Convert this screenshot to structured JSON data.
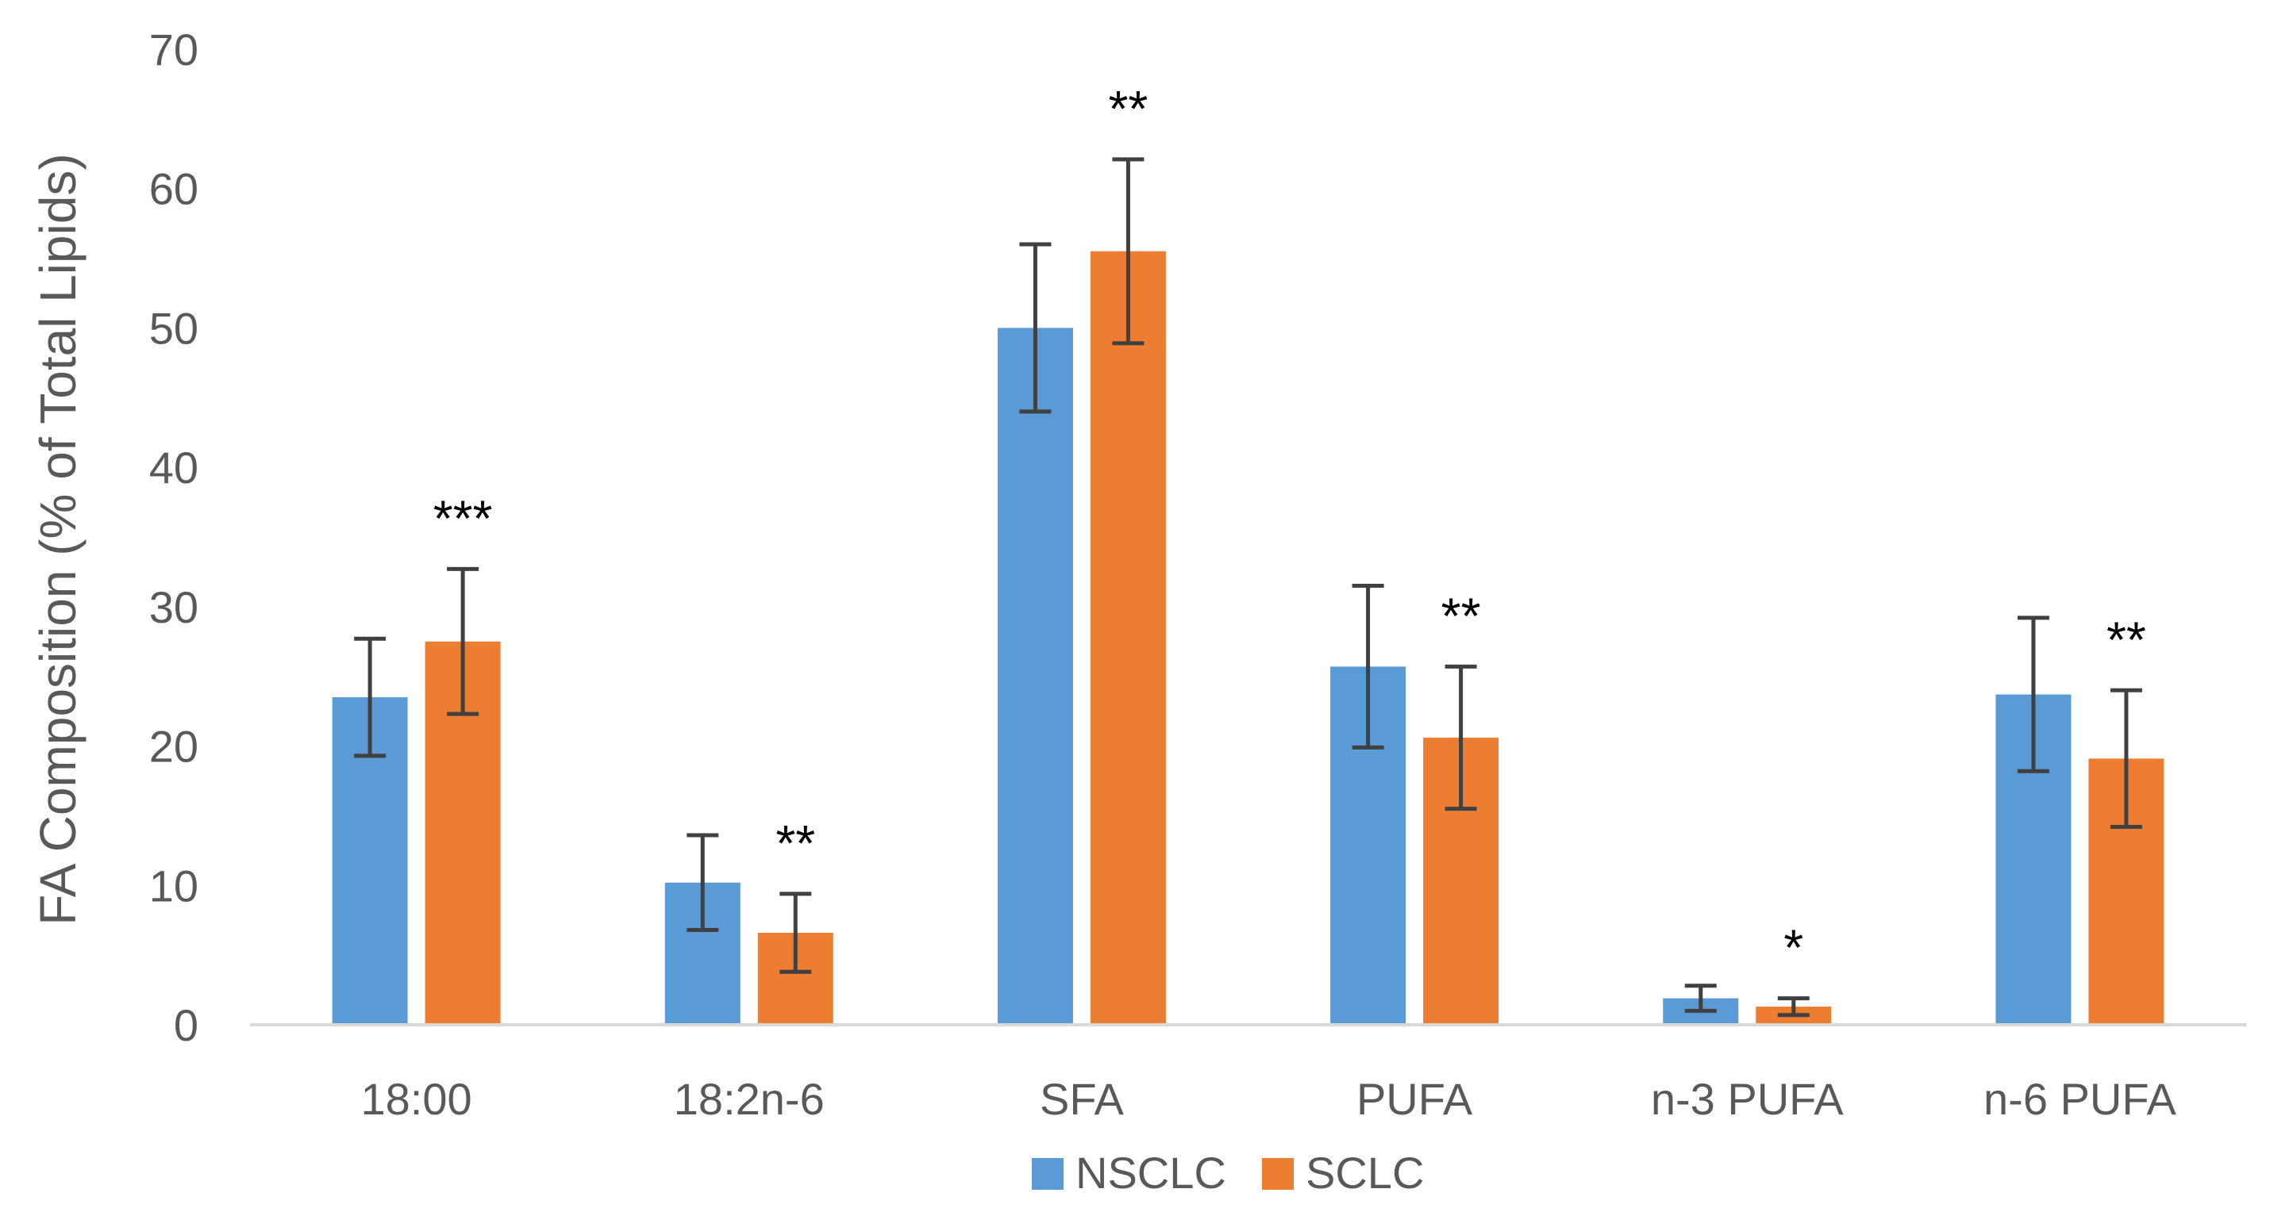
{
  "chart_data": {
    "type": "bar",
    "ylabel": "FA Composition (% of Total  Lipids)",
    "xlabel": "",
    "ylim": [
      0,
      70
    ],
    "yticks": [
      0,
      10,
      20,
      30,
      40,
      50,
      60,
      70
    ],
    "grid": false,
    "legend_position": "bottom-center",
    "categories": [
      "18:00",
      "18:2n-6",
      "SFA",
      "PUFA",
      "n-3 PUFA",
      "n-6 PUFA"
    ],
    "series": [
      {
        "name": "NSCLC",
        "color": "#5B9BD5",
        "values": [
          23.5,
          10.2,
          50.0,
          25.7,
          1.9,
          23.7
        ],
        "errors": [
          4.2,
          3.4,
          6.0,
          5.8,
          0.9,
          5.5
        ]
      },
      {
        "name": "SCLC",
        "color": "#ED7D31",
        "values": [
          27.5,
          6.6,
          55.5,
          20.6,
          1.3,
          19.1
        ],
        "errors": [
          5.2,
          2.8,
          6.6,
          5.1,
          0.6,
          4.9
        ]
      }
    ],
    "significance": [
      "***",
      "**",
      "**",
      "**",
      "*",
      "**"
    ]
  },
  "colors": {
    "axis": "#D9D9D9",
    "tick_text": "#595959",
    "error_bar": "#404040",
    "annotation": "#000000"
  }
}
